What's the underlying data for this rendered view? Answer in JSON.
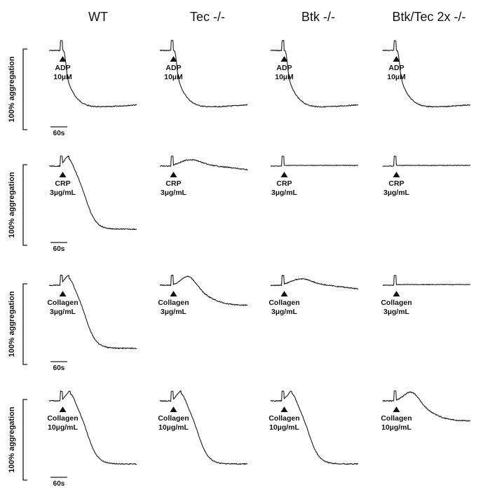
{
  "columns": [
    "WT",
    "Tec -/-",
    "Btk -/-",
    "Btk/Tec 2x -/-"
  ],
  "y_axis_label": "100% aggregation",
  "time_scale_label": "60s",
  "rows": [
    {
      "agonist": "ADP",
      "dose": "10µM",
      "responses": [
        "full",
        "full",
        "full",
        "full"
      ]
    },
    {
      "agonist": "CRP",
      "dose": "3µg/mL",
      "responses": [
        "full",
        "reduced",
        "absent",
        "absent"
      ]
    },
    {
      "agonist": "Collagen",
      "dose": "3µg/mL",
      "responses": [
        "full",
        "partial",
        "reduced",
        "absent"
      ]
    },
    {
      "agonist": "Collagen",
      "dose": "10µg/mL",
      "responses": [
        "full",
        "full",
        "full",
        "partial"
      ]
    }
  ],
  "colors": {
    "trace": "#1a1a1a",
    "background": "#ffffff"
  }
}
